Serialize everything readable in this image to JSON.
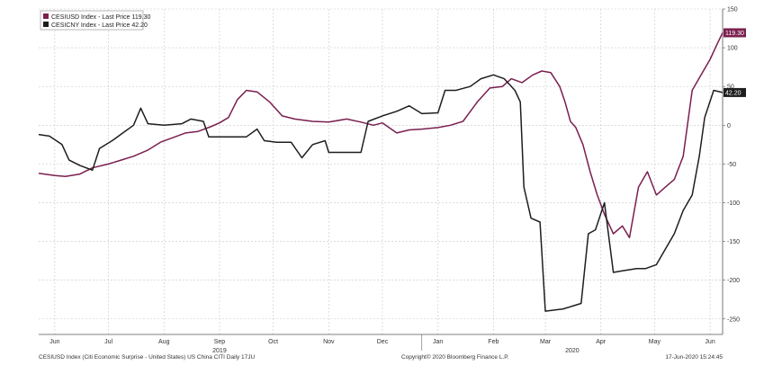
{
  "chart_data": {
    "type": "line",
    "legend": [
      "CESIUSD Index - Last Price 119.30",
      "CESICNY Index - Last Price 42.20"
    ],
    "legend_placement": "top-left",
    "grid": true,
    "ylim": [
      -270,
      150
    ],
    "y_ticks": [
      150,
      100,
      50,
      0,
      -50,
      -100,
      -150,
      -200,
      -250
    ],
    "x_range": [
      "2019-06-01",
      "2020-06-17"
    ],
    "x_ticks": [
      {
        "date": "2019-06-10",
        "label": "Jun"
      },
      {
        "date": "2019-07-10",
        "label": "Jul"
      },
      {
        "date": "2019-08-10",
        "label": "Aug"
      },
      {
        "date": "2019-09-10",
        "label": "Sep"
      },
      {
        "date": "2019-10-10",
        "label": "Oct"
      },
      {
        "date": "2019-11-10",
        "label": "Nov"
      },
      {
        "date": "2019-12-10",
        "label": "Dec"
      },
      {
        "date": "2020-01-10",
        "label": "Jan"
      },
      {
        "date": "2020-02-10",
        "label": "Feb"
      },
      {
        "date": "2020-03-10",
        "label": "Mar"
      },
      {
        "date": "2020-04-10",
        "label": "Apr"
      },
      {
        "date": "2020-05-10",
        "label": "May"
      },
      {
        "date": "2020-06-10",
        "label": "Jun"
      }
    ],
    "year_labels": [
      {
        "date": "2019-09-10",
        "label": "2019"
      },
      {
        "date": "2020-03-25",
        "label": "2020"
      }
    ],
    "series": [
      {
        "name": "CESIUSD Index",
        "color": "#7a1f4f",
        "last_price": "119.30",
        "points": [
          [
            "2019-06-01",
            -62
          ],
          [
            "2019-06-10",
            -65
          ],
          [
            "2019-06-16",
            -66
          ],
          [
            "2019-06-24",
            -63
          ],
          [
            "2019-07-01",
            -55
          ],
          [
            "2019-07-10",
            -50
          ],
          [
            "2019-07-17",
            -45
          ],
          [
            "2019-07-24",
            -40
          ],
          [
            "2019-08-01",
            -32
          ],
          [
            "2019-08-08",
            -22
          ],
          [
            "2019-08-15",
            -16
          ],
          [
            "2019-08-22",
            -10
          ],
          [
            "2019-08-29",
            -8
          ],
          [
            "2019-09-05",
            -2
          ],
          [
            "2019-09-10",
            3
          ],
          [
            "2019-09-15",
            10
          ],
          [
            "2019-09-20",
            33
          ],
          [
            "2019-09-25",
            45
          ],
          [
            "2019-10-01",
            43
          ],
          [
            "2019-10-08",
            30
          ],
          [
            "2019-10-15",
            12
          ],
          [
            "2019-10-22",
            8
          ],
          [
            "2019-11-01",
            5
          ],
          [
            "2019-11-10",
            4
          ],
          [
            "2019-11-20",
            8
          ],
          [
            "2019-11-28",
            4
          ],
          [
            "2019-12-05",
            0
          ],
          [
            "2019-12-10",
            3
          ],
          [
            "2019-12-18",
            -10
          ],
          [
            "2019-12-25",
            -6
          ],
          [
            "2020-01-01",
            -5
          ],
          [
            "2020-01-10",
            -3
          ],
          [
            "2020-01-17",
            0
          ],
          [
            "2020-01-24",
            5
          ],
          [
            "2020-02-01",
            30
          ],
          [
            "2020-02-08",
            48
          ],
          [
            "2020-02-15",
            50
          ],
          [
            "2020-02-20",
            60
          ],
          [
            "2020-02-26",
            55
          ],
          [
            "2020-03-03",
            65
          ],
          [
            "2020-03-08",
            70
          ],
          [
            "2020-03-13",
            68
          ],
          [
            "2020-03-18",
            50
          ],
          [
            "2020-03-21",
            30
          ],
          [
            "2020-03-24",
            5
          ],
          [
            "2020-03-27",
            -3
          ],
          [
            "2020-03-31",
            -25
          ],
          [
            "2020-04-04",
            -60
          ],
          [
            "2020-04-08",
            -90
          ],
          [
            "2020-04-12",
            -115
          ],
          [
            "2020-04-17",
            -140
          ],
          [
            "2020-04-22",
            -130
          ],
          [
            "2020-04-26",
            -145
          ],
          [
            "2020-05-01",
            -80
          ],
          [
            "2020-05-06",
            -60
          ],
          [
            "2020-05-11",
            -90
          ],
          [
            "2020-05-16",
            -80
          ],
          [
            "2020-05-21",
            -70
          ],
          [
            "2020-05-26",
            -40
          ],
          [
            "2020-05-31",
            45
          ],
          [
            "2020-06-05",
            65
          ],
          [
            "2020-06-10",
            85
          ],
          [
            "2020-06-14",
            105
          ],
          [
            "2020-06-17",
            119.3
          ]
        ]
      },
      {
        "name": "CESICNY Index",
        "color": "#1e1e1e",
        "last_price": "42.20",
        "points": [
          [
            "2019-06-01",
            -12
          ],
          [
            "2019-06-07",
            -14
          ],
          [
            "2019-06-14",
            -25
          ],
          [
            "2019-06-18",
            -45
          ],
          [
            "2019-06-24",
            -52
          ],
          [
            "2019-07-01",
            -58
          ],
          [
            "2019-07-05",
            -30
          ],
          [
            "2019-07-12",
            -20
          ],
          [
            "2019-07-18",
            -10
          ],
          [
            "2019-07-24",
            0
          ],
          [
            "2019-07-28",
            22
          ],
          [
            "2019-08-01",
            2
          ],
          [
            "2019-08-10",
            0
          ],
          [
            "2019-08-20",
            2
          ],
          [
            "2019-08-25",
            8
          ],
          [
            "2019-09-01",
            5
          ],
          [
            "2019-09-04",
            -15
          ],
          [
            "2019-09-15",
            -15
          ],
          [
            "2019-09-25",
            -15
          ],
          [
            "2019-10-01",
            -5
          ],
          [
            "2019-10-05",
            -20
          ],
          [
            "2019-10-12",
            -22
          ],
          [
            "2019-10-20",
            -22
          ],
          [
            "2019-10-26",
            -42
          ],
          [
            "2019-11-01",
            -25
          ],
          [
            "2019-11-08",
            -20
          ],
          [
            "2019-11-10",
            -35
          ],
          [
            "2019-11-20",
            -35
          ],
          [
            "2019-11-28",
            -35
          ],
          [
            "2019-12-02",
            5
          ],
          [
            "2019-12-10",
            12
          ],
          [
            "2019-12-18",
            18
          ],
          [
            "2019-12-25",
            25
          ],
          [
            "2020-01-01",
            15
          ],
          [
            "2020-01-10",
            16
          ],
          [
            "2020-01-14",
            45
          ],
          [
            "2020-01-20",
            45
          ],
          [
            "2020-01-28",
            50
          ],
          [
            "2020-02-03",
            60
          ],
          [
            "2020-02-10",
            65
          ],
          [
            "2020-02-16",
            60
          ],
          [
            "2020-02-22",
            45
          ],
          [
            "2020-02-25",
            30
          ],
          [
            "2020-02-27",
            -80
          ],
          [
            "2020-03-02",
            -120
          ],
          [
            "2020-03-07",
            -125
          ],
          [
            "2020-03-10",
            -240
          ],
          [
            "2020-03-20",
            -237
          ],
          [
            "2020-03-30",
            -230
          ],
          [
            "2020-04-03",
            -140
          ],
          [
            "2020-04-07",
            -135
          ],
          [
            "2020-04-12",
            -100
          ],
          [
            "2020-04-17",
            -190
          ],
          [
            "2020-04-22",
            -188
          ],
          [
            "2020-04-30",
            -185
          ],
          [
            "2020-05-05",
            -185
          ],
          [
            "2020-05-11",
            -180
          ],
          [
            "2020-05-16",
            -160
          ],
          [
            "2020-05-21",
            -140
          ],
          [
            "2020-05-26",
            -110
          ],
          [
            "2020-05-31",
            -90
          ],
          [
            "2020-06-04",
            -40
          ],
          [
            "2020-06-07",
            10
          ],
          [
            "2020-06-12",
            45
          ],
          [
            "2020-06-17",
            42.2
          ]
        ]
      }
    ]
  },
  "footer": {
    "left": "CESIUSD Index (Citi Economic Surprise - United States) US China CITI  Daily 17JU",
    "center": "Copyright© 2020 Bloomberg Finance L.P.",
    "right": "17-Jun-2020 15:24:45"
  }
}
